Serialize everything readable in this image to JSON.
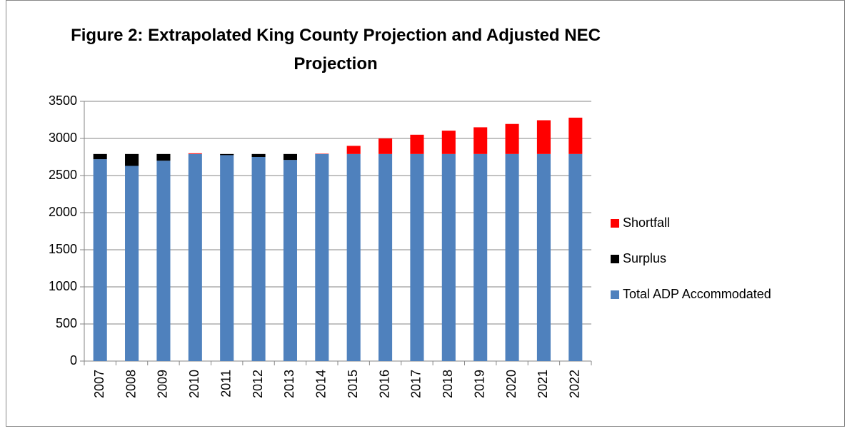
{
  "chart_data": {
    "type": "stacked_bar",
    "title": "Figure 2: Extrapolated King County Projection and Adjusted NEC Projection",
    "categories": [
      "2007",
      "2008",
      "2009",
      "2010",
      "2011",
      "2012",
      "2013",
      "2014",
      "2015",
      "2016",
      "2017",
      "2018",
      "2019",
      "2020",
      "2021",
      "2022"
    ],
    "series": [
      {
        "name": "Total ADP Accommodated",
        "color": "#4f81bd",
        "values": [
          2720,
          2630,
          2700,
          2790,
          2775,
          2750,
          2710,
          2790,
          2790,
          2790,
          2790,
          2790,
          2790,
          2790,
          2790,
          2790
        ]
      },
      {
        "name": "Surplus",
        "color": "#000000",
        "values": [
          70,
          160,
          90,
          0,
          15,
          40,
          80,
          0,
          0,
          0,
          0,
          0,
          0,
          0,
          0,
          0
        ]
      },
      {
        "name": "Shortfall",
        "color": "#ff0000",
        "values": [
          0,
          0,
          0,
          10,
          0,
          0,
          0,
          5,
          110,
          210,
          260,
          315,
          360,
          405,
          455,
          490
        ]
      }
    ],
    "ylim": [
      0,
      3500
    ],
    "yticks": [
      0,
      500,
      1000,
      1500,
      2000,
      2500,
      3000,
      3500
    ],
    "grid": true,
    "legend": "right"
  }
}
